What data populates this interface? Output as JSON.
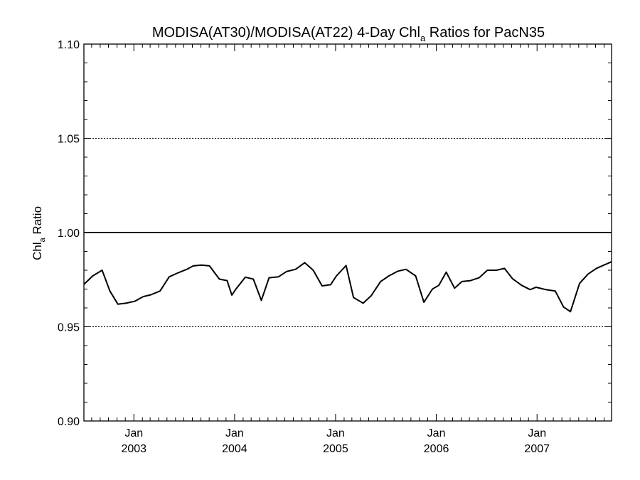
{
  "chart_data": {
    "type": "line",
    "title": {
      "main": "MODISA(AT30)/MODISA(AT22) 4-Day Chl",
      "subscript": "a",
      "rest": " Ratios for PacN35"
    },
    "ylabel": {
      "main": "Chl",
      "subscript": "a",
      "rest": " Ratio"
    },
    "xlabel": "",
    "ylim": [
      0.9,
      1.1
    ],
    "xlim": [
      "2002-07-04",
      "2007-09-28"
    ],
    "y_major_ticks": [
      {
        "value": 0.9,
        "label": "0.90"
      },
      {
        "value": 0.95,
        "label": "0.95"
      },
      {
        "value": 1.0,
        "label": "1.00"
      },
      {
        "value": 1.05,
        "label": "1.05"
      },
      {
        "value": 1.1,
        "label": "1.10"
      }
    ],
    "y_minor_step": 0.01,
    "y_gridlines": [
      0.95,
      1.05
    ],
    "reference_line": 1.0,
    "x_major_ticks": [
      {
        "date": "2003-01-01",
        "month": "Jan",
        "year": "2003"
      },
      {
        "date": "2004-01-01",
        "month": "Jan",
        "year": "2004"
      },
      {
        "date": "2005-01-01",
        "month": "Jan",
        "year": "2005"
      },
      {
        "date": "2006-01-01",
        "month": "Jan",
        "year": "2006"
      },
      {
        "date": "2007-01-01",
        "month": "Jan",
        "year": "2007"
      }
    ],
    "x_minor_ticks": [
      "2002-08-01",
      "2002-09-01",
      "2002-10-01",
      "2002-11-01",
      "2002-12-01",
      "2003-02-01",
      "2003-03-01",
      "2003-04-01",
      "2003-05-01",
      "2003-06-01",
      "2003-07-01",
      "2003-08-01",
      "2003-09-01",
      "2003-10-01",
      "2003-11-01",
      "2003-12-01",
      "2004-02-01",
      "2004-03-01",
      "2004-04-01",
      "2004-05-01",
      "2004-06-01",
      "2004-07-01",
      "2004-08-01",
      "2004-09-01",
      "2004-10-01",
      "2004-11-01",
      "2004-12-01",
      "2005-02-01",
      "2005-03-01",
      "2005-04-01",
      "2005-05-01",
      "2005-06-01",
      "2005-07-01",
      "2005-08-01",
      "2005-09-01",
      "2005-10-01",
      "2005-11-01",
      "2005-12-01",
      "2006-02-01",
      "2006-03-01",
      "2006-04-01",
      "2006-05-01",
      "2006-06-01",
      "2006-07-01",
      "2006-08-01",
      "2006-09-01",
      "2006-10-01",
      "2006-11-01",
      "2006-12-01",
      "2007-02-01",
      "2007-03-01",
      "2007-04-01",
      "2007-05-01",
      "2007-06-01",
      "2007-07-01",
      "2007-08-01",
      "2007-09-01"
    ],
    "series": [
      {
        "x": [
          "2002-07-04",
          "2002-08-05",
          "2002-09-08",
          "2002-10-06",
          "2002-11-04",
          "2002-12-03",
          "2003-01-04",
          "2003-02-04",
          "2003-03-04",
          "2003-04-06",
          "2003-05-09",
          "2003-06-08",
          "2003-07-12",
          "2003-08-04",
          "2003-09-03",
          "2003-10-02",
          "2003-11-07",
          "2003-12-05",
          "2003-12-22",
          "2004-01-05",
          "2004-02-09",
          "2004-03-09",
          "2004-04-07",
          "2004-05-05",
          "2004-06-08",
          "2004-07-07",
          "2004-08-09",
          "2004-09-11",
          "2004-10-12",
          "2004-11-13",
          "2004-12-14",
          "2005-01-04",
          "2005-02-08",
          "2005-03-07",
          "2005-04-11",
          "2005-05-10",
          "2005-06-13",
          "2005-07-13",
          "2005-08-15",
          "2005-09-13",
          "2005-10-18",
          "2005-11-17",
          "2005-12-18",
          "2006-01-10",
          "2006-02-06",
          "2006-03-08",
          "2006-04-04",
          "2006-05-05",
          "2006-06-05",
          "2006-07-05",
          "2006-08-07",
          "2006-09-05",
          "2006-10-04",
          "2006-11-06",
          "2006-12-07",
          "2006-12-28",
          "2007-02-02",
          "2007-03-08",
          "2007-04-07",
          "2007-05-02",
          "2007-06-04",
          "2007-07-05",
          "2007-08-04",
          "2007-09-28"
        ],
        "y": [
          0.9725,
          0.977,
          0.98,
          0.969,
          0.962,
          0.9625,
          0.9635,
          0.966,
          0.967,
          0.969,
          0.9765,
          0.9785,
          0.9805,
          0.9823,
          0.9827,
          0.9823,
          0.9753,
          0.9745,
          0.9668,
          0.9698,
          0.9763,
          0.9753,
          0.964,
          0.976,
          0.9765,
          0.9793,
          0.9805,
          0.984,
          0.98,
          0.9717,
          0.9723,
          0.977,
          0.9825,
          0.9655,
          0.9625,
          0.9665,
          0.974,
          0.977,
          0.9795,
          0.9805,
          0.977,
          0.963,
          0.97,
          0.972,
          0.979,
          0.9705,
          0.974,
          0.9745,
          0.976,
          0.98,
          0.98,
          0.981,
          0.9755,
          0.972,
          0.9697,
          0.971,
          0.9697,
          0.969,
          0.9605,
          0.958,
          0.973,
          0.978,
          0.981,
          0.9845
        ]
      }
    ]
  }
}
